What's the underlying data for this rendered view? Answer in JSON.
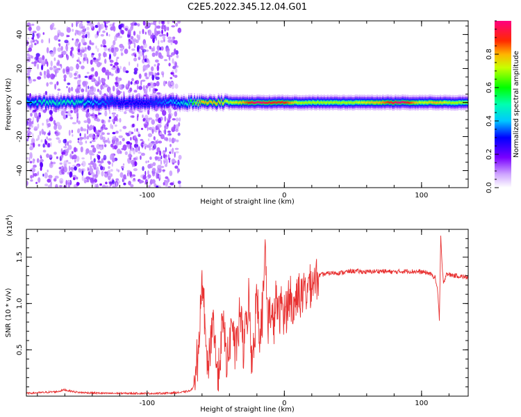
{
  "title": "C2E5.2022.345.12.04.G01",
  "chart_data": [
    {
      "type": "heatmap",
      "xlabel": "Height of straight line (km)",
      "ylabel": "Frequency (Hz)",
      "xlim": [
        -188,
        134
      ],
      "ylim": [
        -50,
        48
      ],
      "x_ticks": [
        -100,
        0,
        100
      ],
      "x_tick_labels": [
        "-100",
        "0",
        "100"
      ],
      "y_ticks": [
        -40,
        -20,
        0,
        20,
        40
      ],
      "y_tick_labels": [
        "-40",
        "-20",
        "0",
        "20",
        "40"
      ],
      "colorbar": {
        "label": "Normalized spectral amplitude",
        "range": [
          0,
          1
        ],
        "ticks": [
          0.0,
          0.2,
          0.4,
          0.6,
          0.8
        ],
        "tick_labels": [
          "0.0",
          "0.2",
          "0.4",
          "0.6",
          "0.8"
        ]
      },
      "scatter_region": {
        "x_range": [
          -188,
          -76
        ],
        "freq_range": [
          -50,
          48
        ]
      },
      "ridge": {
        "frequency": 0,
        "points": [
          [
            -188,
            0.4
          ],
          [
            -175,
            0.5
          ],
          [
            -160,
            0.5
          ],
          [
            -150,
            0.5
          ],
          [
            -140,
            0.4
          ],
          [
            -120,
            0.3
          ],
          [
            -100,
            0.3
          ],
          [
            -80,
            0.4
          ],
          [
            -70,
            0.5
          ],
          [
            -64,
            0.7
          ],
          [
            -60,
            0.8
          ],
          [
            -50,
            0.8
          ],
          [
            -40,
            0.7
          ],
          [
            -30,
            0.8
          ],
          [
            -20,
            1.0
          ],
          [
            -10,
            0.9
          ],
          [
            0,
            0.9
          ],
          [
            10,
            0.7
          ],
          [
            30,
            0.7
          ],
          [
            50,
            0.7
          ],
          [
            70,
            0.8
          ],
          [
            85,
            1.0
          ],
          [
            100,
            0.7
          ],
          [
            110,
            0.8
          ],
          [
            120,
            0.7
          ],
          [
            134,
            0.7
          ]
        ]
      },
      "grid": false
    },
    {
      "type": "line",
      "xlabel": "Height of straight line (km)",
      "ylabel": "SNR (10 * v/v)",
      "y_multiplier": "(x10",
      "y_multiplier_exp": "4",
      "y_multiplier_close": ")",
      "xlim": [
        -188,
        134
      ],
      "ylim": [
        0,
        1.8
      ],
      "x_ticks": [
        -100,
        0,
        100
      ],
      "x_tick_labels": [
        "-100",
        "0",
        "100"
      ],
      "y_ticks": [
        0.5,
        1.0,
        1.5
      ],
      "y_tick_labels": [
        "0.5",
        "1.0",
        "1.5"
      ],
      "series": [
        {
          "color": "#e83030",
          "x": [
            -188,
            -175,
            -165,
            -160,
            -158,
            -150,
            -130,
            -110,
            -90,
            -75,
            -68,
            -65,
            -63,
            -61,
            -59,
            -58,
            -56,
            -54,
            -52,
            -50,
            -48,
            -46,
            -44,
            -42,
            -40,
            -38,
            -36,
            -34,
            -32,
            -30,
            -28,
            -26,
            -24,
            -22,
            -20,
            -18,
            -16,
            -14,
            -12,
            -10,
            -8,
            -6,
            -4,
            -2,
            0,
            2,
            4,
            6,
            8,
            10,
            12,
            14,
            16,
            18,
            20,
            25,
            30,
            35,
            40,
            50,
            60,
            70,
            80,
            90,
            100,
            105,
            110,
            112,
            113,
            114,
            115,
            116,
            118,
            120,
            125,
            130,
            134
          ],
          "y": [
            0.03,
            0.04,
            0.05,
            0.07,
            0.06,
            0.04,
            0.03,
            0.03,
            0.03,
            0.04,
            0.06,
            0.15,
            0.45,
            0.95,
            1.25,
            0.7,
            0.3,
            0.55,
            0.9,
            0.4,
            0.2,
            0.65,
            0.75,
            0.35,
            0.55,
            0.85,
            0.45,
            0.6,
            0.95,
            0.5,
            0.75,
            1.05,
            0.45,
            0.6,
            1.15,
            0.7,
            0.9,
            1.58,
            0.8,
            0.95,
            0.7,
            1.08,
            0.85,
            1.0,
            0.9,
            0.95,
            1.12,
            0.9,
            1.02,
            1.15,
            1.08,
            1.1,
            1.15,
            1.2,
            1.25,
            1.3,
            1.32,
            1.33,
            1.33,
            1.35,
            1.34,
            1.35,
            1.34,
            1.35,
            1.34,
            1.33,
            1.28,
            1.1,
            0.82,
            1.72,
            1.4,
            1.2,
            1.33,
            1.31,
            1.3,
            1.29,
            1.28
          ]
        }
      ],
      "grid": false
    }
  ]
}
